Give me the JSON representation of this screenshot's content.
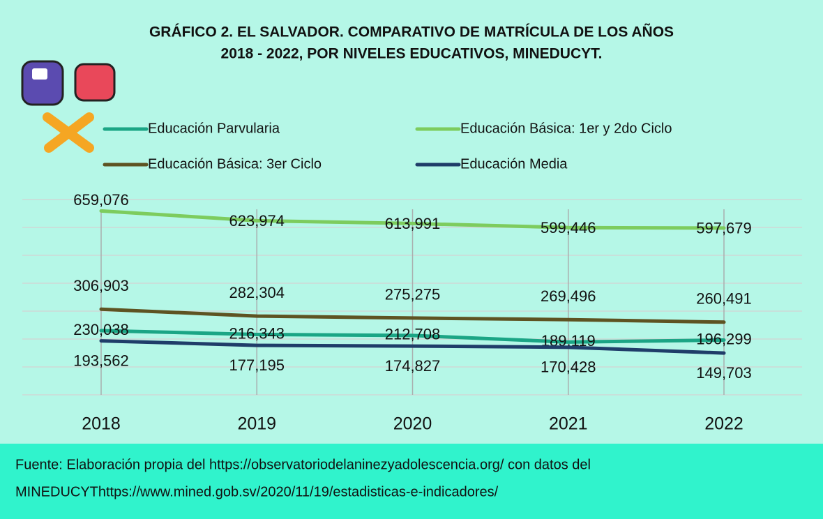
{
  "chart_data": {
    "type": "line",
    "title_lines": [
      "GRÁFICO 2. EL SALVADOR. COMPARATIVO DE MATRÍCULA DE LOS AÑOS",
      "2018 - 2022, POR NIVELES EDUCATIVOS, MINEDUCYT."
    ],
    "categories": [
      "2018",
      "2019",
      "2020",
      "2021",
      "2022"
    ],
    "series": [
      {
        "name": "Educación Parvularia",
        "color": "#1ba585",
        "values": [
          230038,
          216343,
          212708,
          189119,
          196299
        ],
        "value_labels": [
          "230,038",
          "216,343",
          "212,708",
          "189,119",
          "196,299"
        ]
      },
      {
        "name": "Educación Básica: 1er  y 2do Ciclo",
        "color": "#7dcc5e",
        "values": [
          659076,
          623974,
          613991,
          599446,
          597679
        ],
        "value_labels": [
          "659,076",
          "623,974",
          "613,991",
          "599,446",
          "597,679"
        ]
      },
      {
        "name": "Educación Básica: 3er Ciclo",
        "color": "#5e5322",
        "values": [
          306903,
          282304,
          275275,
          269496,
          260491
        ],
        "value_labels": [
          "306,903",
          "282,304",
          "275,275",
          "269,496",
          "260,491"
        ]
      },
      {
        "name": "Educación Media",
        "color": "#1f3d69",
        "values": [
          193562,
          177195,
          174827,
          170428,
          149703
        ],
        "value_labels": [
          "193,562",
          "177,195",
          "174,827",
          "170,428",
          "149,703"
        ]
      }
    ],
    "ylim": [
      0,
      700000
    ],
    "yticks": [
      0,
      100000,
      200000,
      300000,
      400000,
      500000,
      600000,
      700000
    ],
    "grid": true,
    "source_lines": [
      "Fuente: Elaboración propia del https://observatoriodelaninezyadolescencia.org/ con datos del",
      "MINEDUCYThttps://www.mined.gob.sv/2020/11/19/estadisticas-e-indicadores/"
    ]
  }
}
